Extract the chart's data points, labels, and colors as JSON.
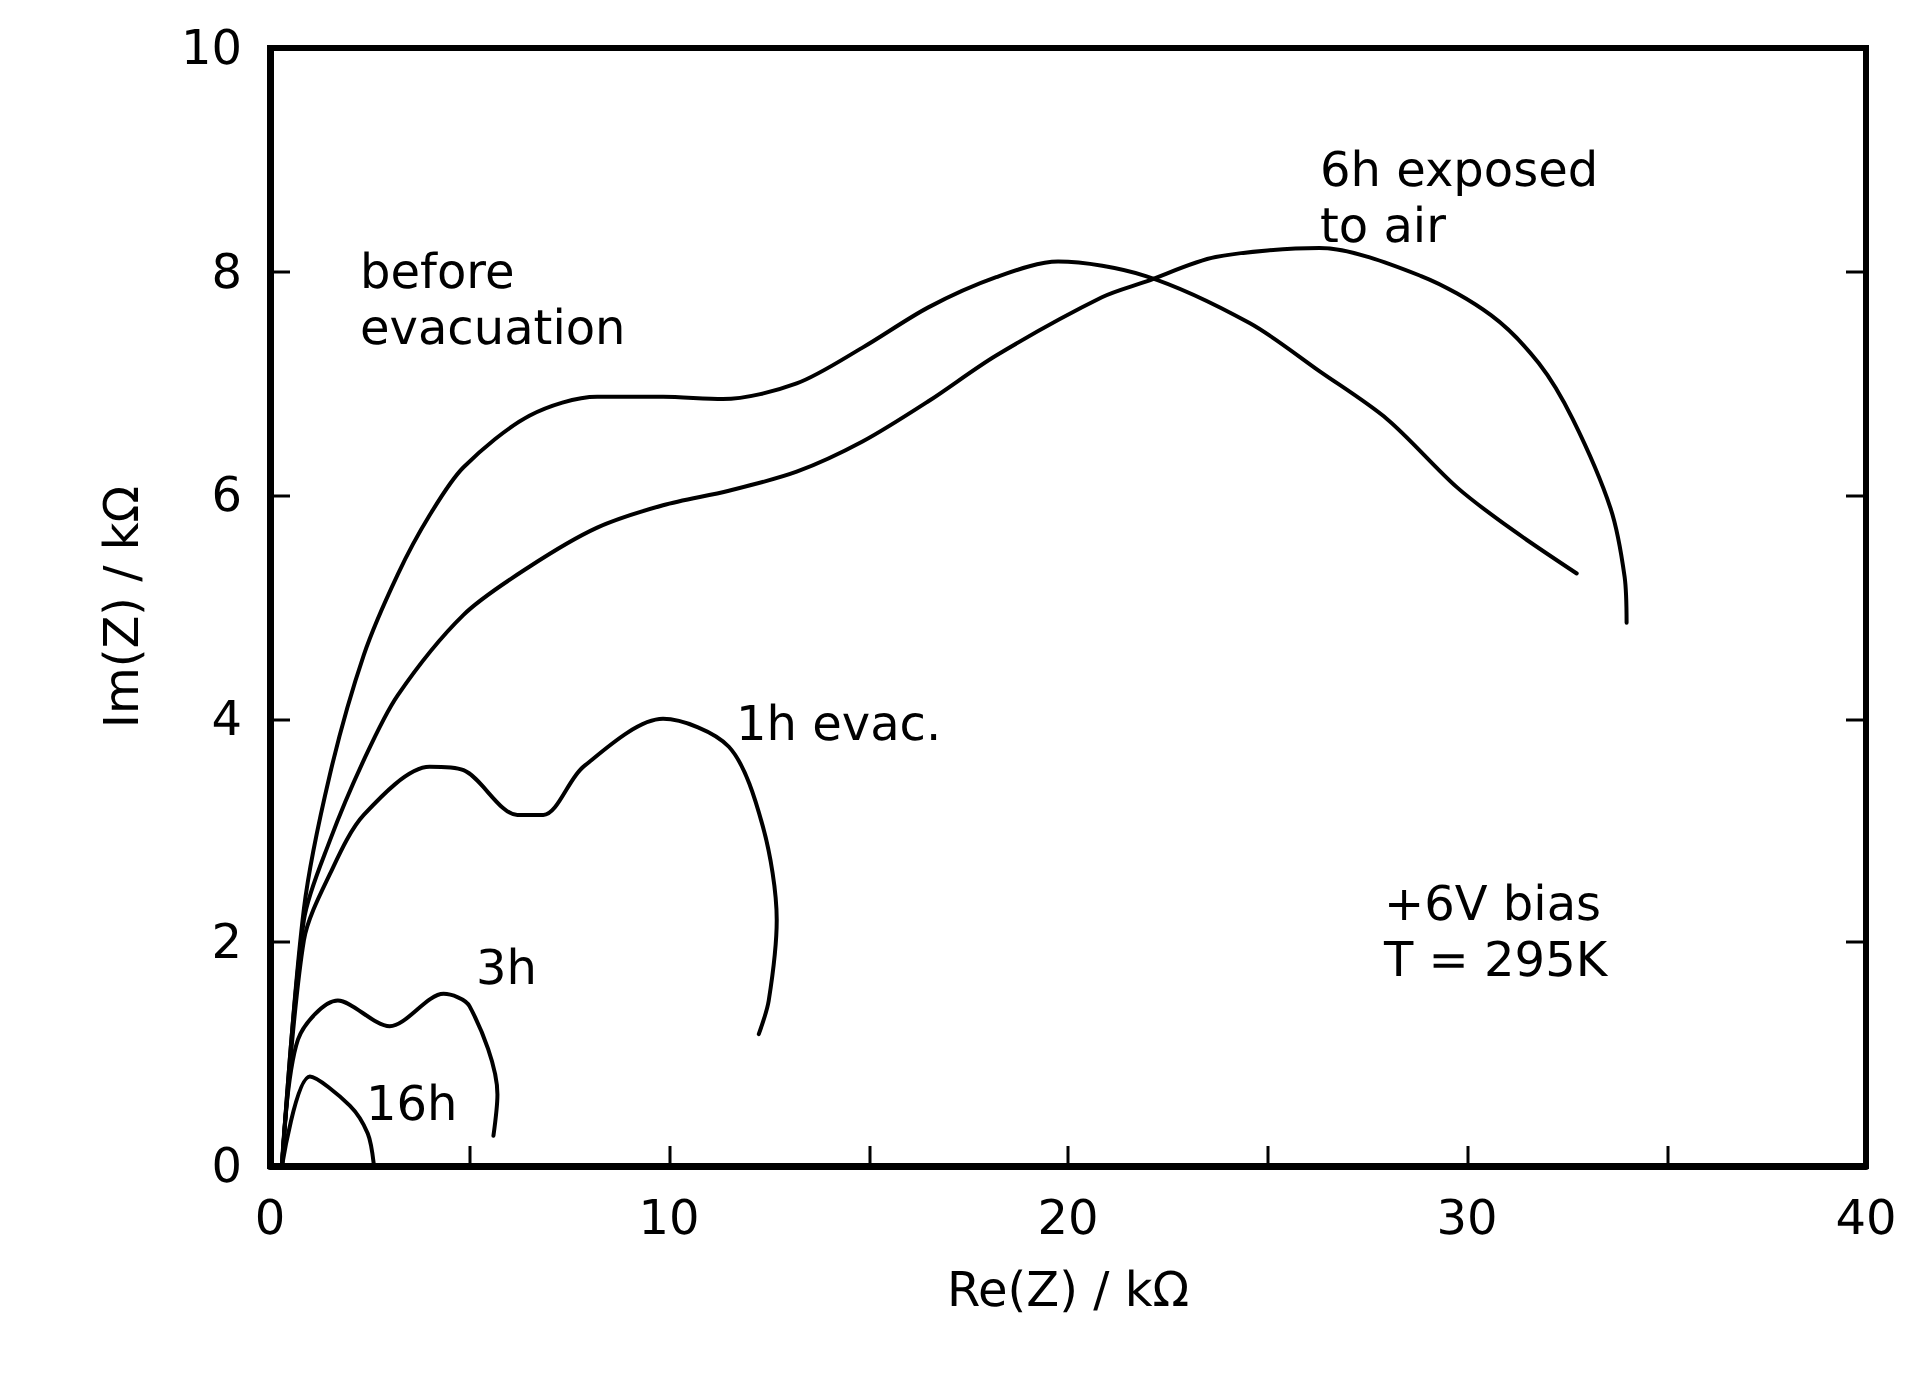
{
  "chart_data": {
    "type": "line",
    "xlabel": "Re(Z) / kΩ",
    "ylabel": "Im(Z) / kΩ",
    "xlim": [
      0,
      40
    ],
    "xticks": [
      0,
      {
        "value": 5,
        "label": null
      },
      10,
      {
        "value": 15,
        "label": null
      },
      20,
      {
        "value": 25,
        "label": null
      },
      30,
      {
        "value": 35,
        "label": null
      },
      40
    ],
    "ylim": [
      0,
      10
    ],
    "yticks": [
      0,
      2,
      4,
      6,
      8,
      10
    ],
    "grid": false,
    "legend": false,
    "marker": "none",
    "line_style": "solid",
    "series": [
      {
        "name": "before\nevacuation",
        "color": "#000000",
        "x": [
          0.3,
          0.85,
          1.5,
          2.35,
          3.2,
          4.0,
          4.85,
          6.5,
          8.2,
          9.85,
          11.35,
          13.2,
          14.85,
          16.5,
          18.2,
          19.75,
          21.95,
          24.55,
          26.3,
          28,
          29.75,
          31.1,
          32.75
        ],
        "values": [
          0,
          2.3,
          3.5,
          4.57,
          5.29,
          5.82,
          6.25,
          6.71,
          6.88,
          6.88,
          6.86,
          7.0,
          7.32,
          7.68,
          7.95,
          8.09,
          7.96,
          7.54,
          7.11,
          6.68,
          6.07,
          5.7,
          5.3
        ]
      },
      {
        "name": "6h exposed\nto air",
        "color": "#000000",
        "x": [
          0.3,
          0.85,
          1.5,
          2.35,
          3.2,
          4.85,
          6.5,
          8.2,
          9.85,
          11.5,
          13.2,
          14.85,
          16.5,
          18.2,
          20.85,
          21.95,
          23.7,
          26.3,
          28.85,
          30.6,
          31.8,
          32.65,
          33.6,
          33.95,
          34
        ],
        "values": [
          0,
          2.2,
          2.91,
          3.63,
          4.21,
          4.93,
          5.36,
          5.71,
          5.91,
          6.04,
          6.21,
          6.48,
          6.84,
          7.25,
          7.77,
          7.91,
          8.13,
          8.21,
          7.96,
          7.61,
          7.18,
          6.68,
          5.88,
          5.27,
          4.86
        ]
      },
      {
        "name": "1h evac.",
        "color": "#000000",
        "x": [
          0.3,
          0.85,
          1.5,
          2.35,
          4.0,
          4.85,
          6.2,
          6.85,
          7.85,
          9.85,
          11.5,
          12.35,
          12.7,
          12.5,
          12.25
        ],
        "values": [
          0,
          2.02,
          2.61,
          3.14,
          3.57,
          3.54,
          3.14,
          3.14,
          3.57,
          4.0,
          3.75,
          3.04,
          2.2,
          1.48,
          1.18
        ]
      },
      {
        "name": "3h",
        "color": "#000000",
        "x": [
          0.3,
          0.7,
          1.7,
          3.0,
          4.35,
          5.0,
          5.7,
          5.6
        ],
        "values": [
          0,
          1.13,
          1.48,
          1.25,
          1.54,
          1.43,
          0.64,
          0.27
        ]
      },
      {
        "name": "16h",
        "color": "#000000",
        "x": [
          0.3,
          1.0,
          2.0,
          2.45,
          2.6
        ],
        "values": [
          0,
          0.8,
          0.54,
          0.29,
          0.02
        ]
      }
    ],
    "annotations": [
      "+6V bias\nT = 295K"
    ]
  }
}
